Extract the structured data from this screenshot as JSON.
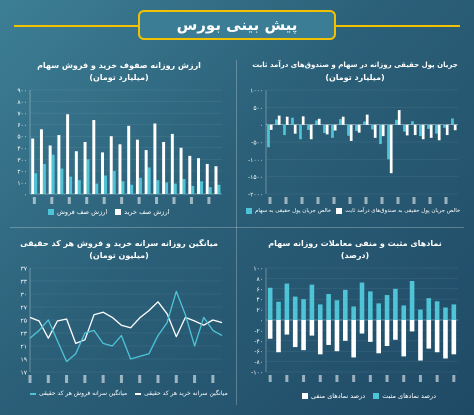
{
  "header": {
    "title": "پیش بینی بورس"
  },
  "colors": {
    "teal": "#4fc4d6",
    "white": "#ffffff",
    "yellow": "#f2c200"
  },
  "panels": {
    "tl": {
      "title1": "ارزش روزانه صفوف خرید و فروش سهام",
      "title2": "(میلیارد تومان)",
      "legend": [
        "ارزش صف فروش",
        "ارزش صف خرید"
      ]
    },
    "tr": {
      "title1": "جریان پول حقیقی روزانه در سهام و صندوق‌های درآمد ثابت",
      "title2": "(میلیارد تومان)",
      "legend": [
        "خالص جریان پول حقیقی به سهام",
        "خالص جریان پول حقیقی به صندوق‌های درآمد ثابت"
      ]
    },
    "bl": {
      "title1": "میانگین روزانه سرانه خرید و فروش هر کد حقیقی",
      "title2": "(میلیون تومان)",
      "legend": [
        "میانگین سرانه فروش هر کد حقیقی",
        "میانگین سرانه خرید هر کد حقیقی"
      ]
    },
    "br": {
      "title1": "نمادهای مثبت و منفی معاملات روزانه سهام",
      "title2": "(درصد)",
      "legend": [
        "درصد نمادهای منفی",
        "درصد نمادهای مثبت"
      ]
    }
  },
  "chart_data": [
    {
      "id": "tl",
      "type": "bar",
      "ylim": [
        0,
        900
      ],
      "yticks": [
        "۰",
        "۱۰۰",
        "۲۰۰",
        "۳۰۰",
        "۴۰۰",
        "۵۰۰",
        "۶۰۰",
        "۷۰۰",
        "۸۰۰",
        "۹۰۰"
      ],
      "series": [
        {
          "name": "ارزش صف خرید",
          "color": "#ffffff",
          "values": [
            480,
            560,
            420,
            510,
            690,
            370,
            450,
            640,
            360,
            500,
            430,
            590,
            470,
            380,
            610,
            450,
            520,
            400,
            330,
            310,
            260,
            240
          ]
        },
        {
          "name": "ارزش صف فروش",
          "color": "#4fc4d6",
          "values": [
            180,
            260,
            340,
            220,
            150,
            120,
            300,
            90,
            160,
            200,
            110,
            80,
            140,
            230,
            120,
            100,
            90,
            130,
            70,
            110,
            60,
            80
          ]
        }
      ]
    },
    {
      "id": "tr",
      "type": "bar",
      "ylim": [
        -2000,
        1000
      ],
      "yticks": [
        "-۲۰۰۰",
        "-۱۵۰۰",
        "-۱۰۰۰",
        "-۵۰۰",
        "۰",
        "۵۰۰",
        "۱۰۰۰"
      ],
      "series": [
        {
          "name": "خالص جریان پول حقیقی به سهام",
          "color": "#4fc4d6",
          "values": [
            -650,
            150,
            -300,
            200,
            -420,
            -150,
            120,
            -240,
            -380,
            160,
            -320,
            -180,
            90,
            -140,
            -560,
            -1000,
            140,
            -200,
            100,
            -330,
            -120,
            -260,
            -90,
            180
          ]
        },
        {
          "name": "خالص جریان پول حقیقی به صندوق‌های درآمد ثابت",
          "color": "#ffffff",
          "values": [
            -150,
            260,
            230,
            -260,
            240,
            -420,
            170,
            -280,
            -170,
            230,
            -470,
            -230,
            290,
            -380,
            -330,
            -1400,
            420,
            -310,
            -300,
            -420,
            -380,
            -450,
            -300,
            -160
          ]
        }
      ]
    },
    {
      "id": "bl",
      "type": "line",
      "ylim": [
        17,
        37
      ],
      "yticks": [
        "۱۷",
        "۱۹",
        "۲۱",
        "۲۳",
        "۲۵",
        "۲۷",
        "۳۰",
        "۳۳",
        "۳۷"
      ],
      "series": [
        {
          "name": "میانگین سرانه خرید هر کد حقیقی",
          "color": "#ffffff",
          "values": [
            27.5,
            26.8,
            23.5,
            26.8,
            27.2,
            22.5,
            23.2,
            28.0,
            28.5,
            27.5,
            26.0,
            25.5,
            27.4,
            28.8,
            30.5,
            28.2,
            23.8,
            27.5,
            26.8,
            26.0,
            27.0,
            26.5
          ]
        },
        {
          "name": "میانگین سرانه فروش هر کد حقیقی",
          "color": "#4fc4d6",
          "values": [
            23.5,
            25.0,
            27.0,
            23.0,
            19.0,
            20.5,
            24.5,
            25.0,
            22.5,
            22.0,
            24.0,
            19.5,
            20.0,
            20.5,
            24.0,
            26.5,
            32.5,
            28.0,
            22.0,
            27.5,
            25.0,
            24.0
          ]
        }
      ]
    },
    {
      "id": "br",
      "type": "bar",
      "ylim": [
        -100,
        100
      ],
      "yticks": [
        "-۱۰۰",
        "-۸۰",
        "-۶۰",
        "-۴۰",
        "-۲۰",
        "۰",
        "۲۰",
        "۴۰",
        "۶۰",
        "۸۰",
        "۱۰۰"
      ],
      "series": [
        {
          "name": "درصد نمادهای مثبت",
          "color": "#4fc4d6",
          "values": [
            62,
            35,
            70,
            45,
            40,
            68,
            30,
            50,
            38,
            58,
            26,
            72,
            55,
            32,
            48,
            60,
            28,
            75,
            20,
            42,
            36,
            24,
            30
          ]
        },
        {
          "name": "درصد نمادهای منفی",
          "color": "#ffffff",
          "values": [
            -36,
            -62,
            -28,
            -52,
            -58,
            -30,
            -66,
            -48,
            -60,
            -40,
            -72,
            -26,
            -42,
            -64,
            -50,
            -38,
            -70,
            -22,
            -78,
            -55,
            -62,
            -74,
            -66
          ]
        }
      ]
    }
  ]
}
